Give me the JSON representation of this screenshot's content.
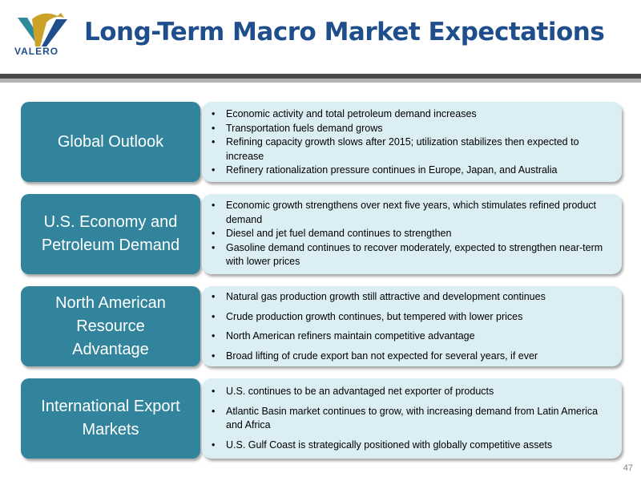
{
  "header": {
    "logo_text": "VALERO",
    "title": "Long-Term Macro Market Expectations"
  },
  "sections": [
    {
      "label": "Global Outlook",
      "bullets": [
        "Economic activity and total petroleum demand increases",
        "Transportation fuels demand grows",
        "Refining capacity growth slows after 2015; utilization stabilizes then expected to increase",
        "Refinery rationalization pressure continues in Europe, Japan, and Australia"
      ]
    },
    {
      "label": "U.S. Economy and\nPetroleum Demand",
      "bullets": [
        "Economic growth strengthens over next five years, which stimulates refined product demand",
        "Diesel and jet fuel demand continues to strengthen",
        "Gasoline demand continues to recover moderately, expected to strengthen near-term with lower prices"
      ]
    },
    {
      "label": "North American\nResource\nAdvantage",
      "bullets": [
        "Natural gas production growth still attractive and development continues",
        "Crude production growth continues, but tempered with lower prices",
        "North American refiners maintain competitive advantage",
        "Broad lifting of crude export ban not expected for several years, if ever"
      ]
    },
    {
      "label": "International Export\nMarkets",
      "bullets": [
        "U.S. continues to be an advantaged net exporter of products",
        "Atlantic Basin market continues to grow, with increasing demand from Latin America and Africa",
        "U.S. Gulf Coast is strategically positioned with globally competitive assets"
      ]
    }
  ],
  "footer": {
    "page_number": "47"
  },
  "colors": {
    "title": "#1f4e8c",
    "label_fill": "#31849b",
    "content_fill": "#dbeef4",
    "logo_teal": "#2e8b9a",
    "logo_gold": "#c9a227"
  }
}
